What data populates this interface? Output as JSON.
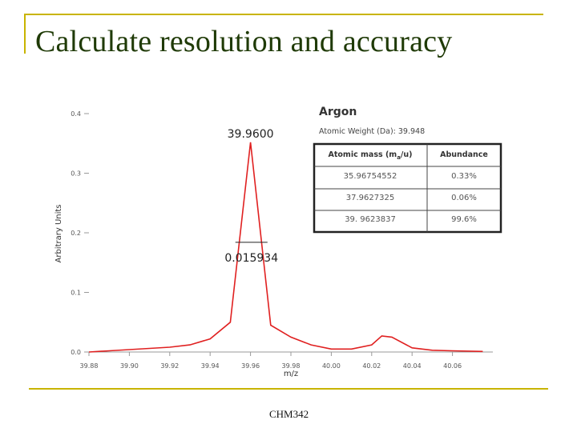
{
  "slide": {
    "title": "Calculate resolution and accuracy",
    "footer": "CHM342",
    "accent_color": "#c8b400",
    "title_color": "#1f3a06"
  },
  "chart_data": {
    "type": "line",
    "xlabel": "m/z",
    "ylabel": "Arbitrary Units",
    "xlim": [
      39.88,
      40.08
    ],
    "ylim": [
      0,
      0.4
    ],
    "x_ticks": [
      "39.88",
      "39.90",
      "39.92",
      "39.94",
      "39.96",
      "39.98",
      "40.00",
      "40.02",
      "40.04",
      "40.06"
    ],
    "y_ticks": [
      "0.0",
      "0.1",
      "0.2",
      "0.3",
      "0.4"
    ],
    "line_color": "#e02020",
    "series": [
      {
        "x": [
          39.88,
          39.89,
          39.9,
          39.91,
          39.92,
          39.93,
          39.94,
          39.95,
          39.96,
          39.97,
          39.98,
          39.99,
          40.0,
          40.01,
          40.02,
          40.025,
          40.03,
          40.04,
          40.05,
          40.06,
          40.075
        ],
        "y": [
          0.0,
          0.002,
          0.004,
          0.006,
          0.008,
          0.012,
          0.022,
          0.05,
          0.352,
          0.045,
          0.025,
          0.012,
          0.005,
          0.005,
          0.012,
          0.027,
          0.025,
          0.007,
          0.003,
          0.002,
          0.001
        ]
      }
    ],
    "annotations": {
      "peak_label": "39.9600",
      "peak_x": 39.96,
      "fwhm_label": "0.015934",
      "fwhm_x1": 39.9525,
      "fwhm_x2": 39.9684,
      "fwhm_y": 0.184
    },
    "info_box": {
      "title": "Argon",
      "subtitle": "Atomic Weight (Da): 39.948",
      "table": {
        "headers": [
          "Atomic mass (m",
          "a",
          "/u)",
          "Abundance"
        ],
        "rows": [
          [
            "35.96754552",
            "0.33%"
          ],
          [
            "37.9627325",
            "0.06%"
          ],
          [
            "39. 9623837",
            "99.6%"
          ]
        ]
      }
    }
  }
}
